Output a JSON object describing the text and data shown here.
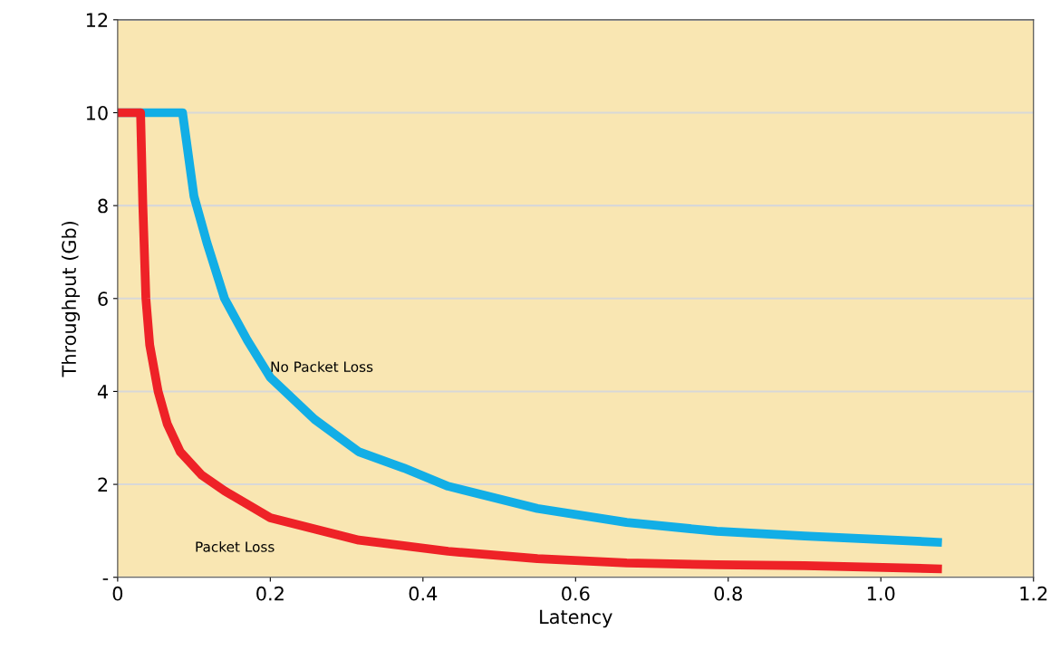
{
  "chart_data": {
    "type": "line",
    "xlabel": "Latency",
    "ylabel": "Throughput (Gb)",
    "xlim": [
      0,
      1.2
    ],
    "xticks": [
      0,
      0.2,
      0.4,
      0.6,
      0.8,
      {
        "value": 1.0,
        "label": "1.0"
      },
      1.2
    ],
    "ylim": [
      0,
      12
    ],
    "yticks": [
      {
        "value": 0,
        "label": "-"
      },
      2,
      4,
      6,
      8,
      10,
      12
    ],
    "grid": "y",
    "legend": false,
    "marker": "none",
    "line_style": "solid",
    "series": [
      {
        "name": "No Packet Loss",
        "color": "#12aee6",
        "x": [
          0,
          0.085,
          0.09,
          0.1,
          0.117,
          0.14,
          0.17,
          0.2,
          0.258,
          0.316,
          0.375,
          0.433,
          0.55,
          0.667,
          0.785,
          0.9,
          1.08
        ],
        "values": [
          10,
          10,
          9.4,
          8.2,
          7.2,
          6.0,
          5.1,
          4.3,
          3.4,
          2.7,
          2.35,
          1.96,
          1.48,
          1.18,
          0.99,
          0.89,
          0.75
        ]
      },
      {
        "name": "Packet Loss",
        "color": "#ee2227",
        "x": [
          0,
          0.03,
          0.033,
          0.037,
          0.042,
          0.053,
          0.065,
          0.082,
          0.11,
          0.14,
          0.2,
          0.316,
          0.433,
          0.55,
          0.667,
          0.785,
          0.9,
          1.08
        ],
        "values": [
          10,
          10,
          8.0,
          6.0,
          5.0,
          4.0,
          3.3,
          2.7,
          2.2,
          1.86,
          1.28,
          0.8,
          0.56,
          0.4,
          0.31,
          0.27,
          0.25,
          0.18
        ]
      }
    ]
  }
}
